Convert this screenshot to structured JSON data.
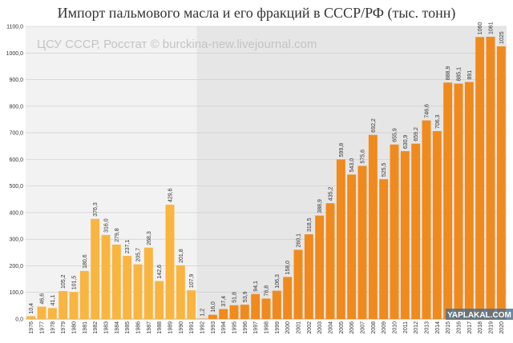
{
  "title": "Импорт пальмового масла и его фракций в СССР/РФ (тыс. тонн)",
  "watermark": "ЦСУ СССР, Росстат © burckina-new.livejournal.com",
  "corner_logo": "YAPLAKAL.COM",
  "colors": {
    "ussr_bar": "#f9b540",
    "rf_bar": "#f08a1c",
    "ussr_bg": "#f2f2f2",
    "rf_bg": "#e6e6e6",
    "grid": "#c8c8c8",
    "text": "#333333"
  },
  "chart_data": {
    "type": "bar",
    "title": "Импорт пальмового масла и его фракций в СССР/РФ (тыс. тонн)",
    "ylim": [
      0,
      1100
    ],
    "yticks": [
      "0,0",
      "100,0",
      "200,0",
      "300,0",
      "400,0",
      "500,0",
      "600,0",
      "700,0",
      "800,0",
      "900,0",
      "1000,0",
      "1100,0"
    ],
    "grid": true,
    "categories": [
      "1976",
      "1977",
      "1978",
      "1979",
      "1980",
      "1981",
      "1982",
      "1983",
      "1984",
      "1985",
      "1986",
      "1987",
      "1988",
      "1989",
      "1990",
      "1991",
      "1992",
      "1993",
      "1994",
      "1995",
      "1996",
      "1997",
      "1998",
      "1999",
      "2000",
      "2001",
      "2002",
      "2003",
      "2004",
      "2005",
      "2006",
      "2007",
      "2008",
      "2009",
      "2010",
      "2011",
      "2012",
      "2013",
      "2014",
      "2015",
      "2016",
      "2017",
      "2018",
      "2019",
      "2020"
    ],
    "values": [
      10.4,
      46.6,
      41.1,
      105.2,
      101.5,
      180.6,
      376.3,
      316.0,
      279.8,
      237.1,
      205.7,
      268.3,
      142.6,
      429.6,
      201.8,
      107.9,
      1.2,
      16.0,
      37.4,
      51.8,
      53.9,
      94.1,
      76.8,
      106.3,
      158.0,
      260.1,
      318.5,
      388.9,
      435.2,
      599.8,
      543.0,
      575.6,
      692.2,
      525.5,
      655.9,
      630.9,
      659.2,
      746.6,
      706.3,
      888.9,
      885.1,
      891,
      1060,
      1061,
      1025
    ],
    "value_labels": [
      "10,4",
      "46,6",
      "41,1",
      "105,2",
      "101,5",
      "180,6",
      "376,3",
      "316,0",
      "279,8",
      "237,1",
      "205,7",
      "268,3",
      "142,6",
      "429,6",
      "201,8",
      "107,9",
      "1,2",
      "16,0",
      "37,4",
      "51,8",
      "53,9",
      "94,1",
      "76,8",
      "106,3",
      "158,0",
      "260,1",
      "318,5",
      "388,9",
      "435,2",
      "599,8",
      "543,0",
      "575,6",
      "692,2",
      "525,5",
      "655,9",
      "630,9",
      "659,2",
      "746,6",
      "706,3",
      "888,9",
      "885,1",
      "891",
      "1060",
      "1061",
      "1025"
    ],
    "ussr_count": 16
  }
}
